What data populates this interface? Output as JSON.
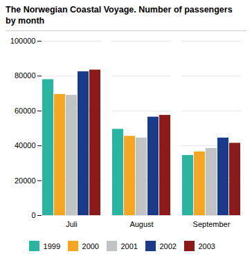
{
  "chart_data": {
    "type": "bar",
    "title": "The Norwegian Coastal Voyage. Number of passengers",
    "subtitle": "by month",
    "categories": [
      "Juli",
      "August",
      "September"
    ],
    "series": [
      {
        "name": "1999",
        "color": "#2ab5a0",
        "values": [
          78000,
          49500,
          34500
        ]
      },
      {
        "name": "2000",
        "color": "#f5a623",
        "values": [
          69500,
          45500,
          36500
        ]
      },
      {
        "name": "2001",
        "color": "#c0c4c4",
        "values": [
          69000,
          44500,
          38500
        ]
      },
      {
        "name": "2002",
        "color": "#1a3a8a",
        "values": [
          82500,
          56500,
          44500
        ]
      },
      {
        "name": "2003",
        "color": "#8b1a18",
        "values": [
          83500,
          57500,
          41500
        ]
      }
    ],
    "ylim": [
      0,
      100000
    ],
    "yticks": [
      0,
      20000,
      40000,
      60000,
      80000,
      100000
    ],
    "grid": true,
    "legend": "bottom"
  }
}
